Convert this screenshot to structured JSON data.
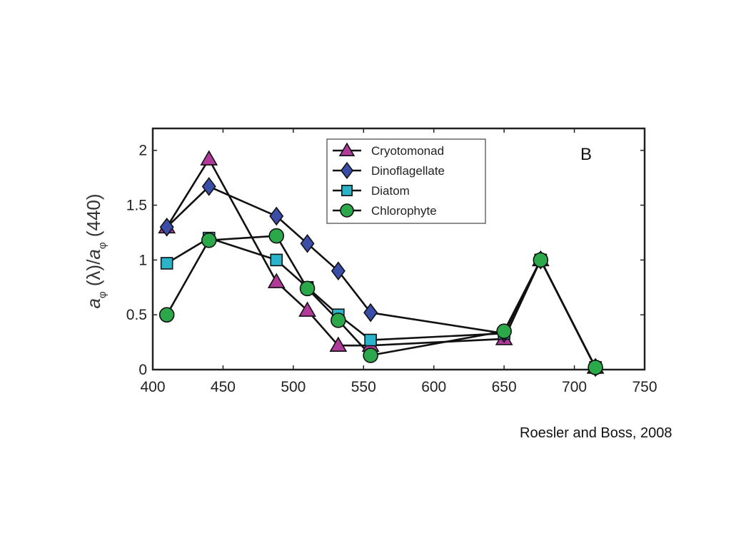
{
  "citation": "Roesler and Boss, 2008",
  "chart_data": {
    "type": "line",
    "panel_label": "B",
    "title": "",
    "xlabel": "",
    "ylabel": "a_φ(λ)/a_φ(440)",
    "ylabel_parts": {
      "a1": "a",
      "sub1": "φ",
      "mid": " (λ)/",
      "a2": "a",
      "sub2": "φ",
      "end": " (440)"
    },
    "xlim": [
      400,
      750
    ],
    "ylim": [
      0,
      2.2
    ],
    "x_ticks": [
      400,
      450,
      500,
      550,
      600,
      650,
      700,
      750
    ],
    "y_ticks": [
      0,
      0.5,
      1,
      1.5,
      2
    ],
    "y_tick_labels": [
      "0",
      "0.5",
      "1",
      "1.5",
      "2"
    ],
    "grid": false,
    "legend_position": "top-center",
    "series": [
      {
        "name": "Cryotomonad",
        "marker": "triangle",
        "color": "#b03a9a",
        "x": [
          410,
          440,
          488,
          510,
          532,
          555,
          650,
          676,
          715
        ],
        "y": [
          1.3,
          1.92,
          0.8,
          0.54,
          0.22,
          0.22,
          0.28,
          1.0,
          0.02
        ]
      },
      {
        "name": "Dinoflagellate",
        "marker": "diamond",
        "color": "#3a4ea8",
        "x": [
          410,
          440,
          488,
          510,
          532,
          555,
          650,
          676,
          715
        ],
        "y": [
          1.3,
          1.67,
          1.4,
          1.15,
          0.9,
          0.52,
          0.33,
          1.0,
          0.02
        ]
      },
      {
        "name": "Diatom",
        "marker": "square",
        "color": "#2ab3c9",
        "x": [
          410,
          440,
          488,
          510,
          532,
          555,
          650,
          676,
          715
        ],
        "y": [
          0.97,
          1.2,
          1.0,
          0.75,
          0.5,
          0.27,
          0.33,
          1.0,
          0.02
        ]
      },
      {
        "name": "Chlorophyte",
        "marker": "circle",
        "color": "#2aa84a",
        "x": [
          410,
          440,
          488,
          510,
          532,
          555,
          650,
          676,
          715
        ],
        "y": [
          0.5,
          1.18,
          1.22,
          0.74,
          0.45,
          0.13,
          0.35,
          1.0,
          0.02
        ]
      }
    ]
  }
}
